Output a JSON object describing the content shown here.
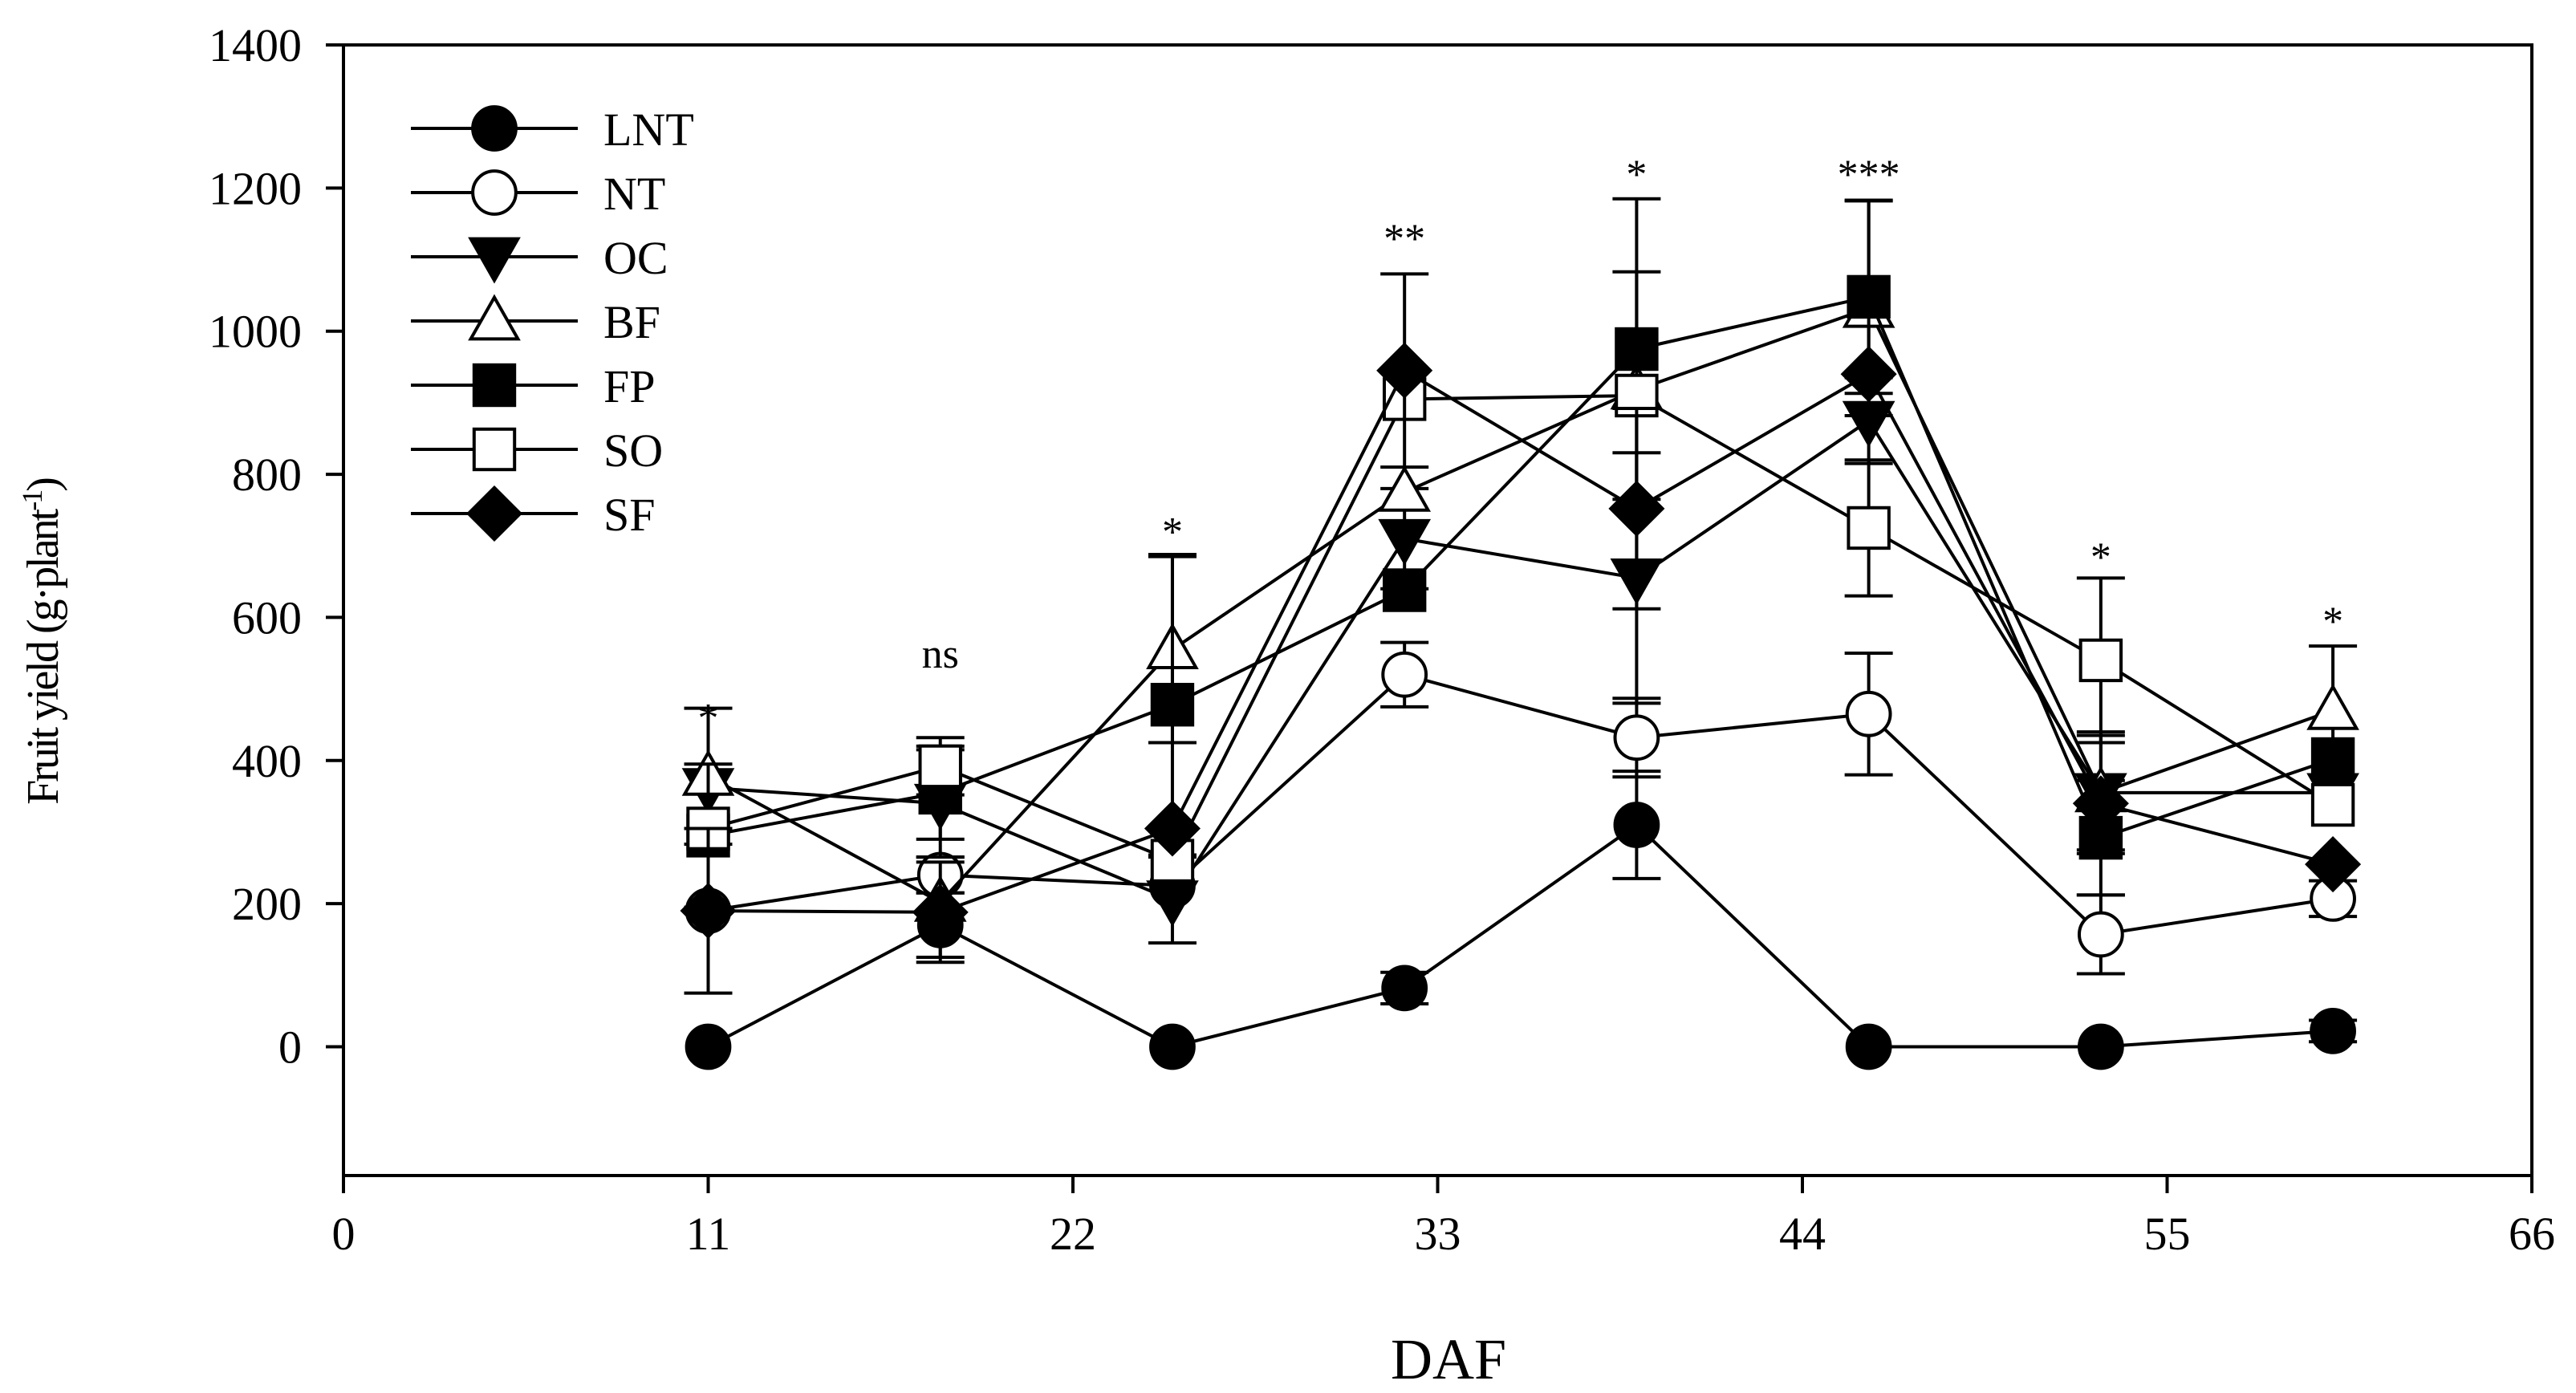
{
  "chart_data": {
    "type": "line",
    "xlabel": "DAF",
    "ylabel": "Fruit yield (g·plant",
    "ylabel_sup": "-1",
    "ylabel_tail": ")",
    "xlim": [
      0,
      66
    ],
    "ylim": [
      -180,
      1400
    ],
    "x_ticks": [
      0,
      11,
      22,
      33,
      44,
      55,
      66
    ],
    "y_ticks": [
      0,
      200,
      400,
      600,
      800,
      1000,
      1200,
      1400
    ],
    "x_tick_labels": [
      "0",
      "11",
      "22",
      "33",
      "44",
      "55",
      "66"
    ],
    "y_tick_labels": [
      "0",
      "200",
      "400",
      "600",
      "800",
      "1000",
      "1200",
      "1400"
    ],
    "grid": false,
    "legend_position": "top-left",
    "x": [
      11,
      18,
      25,
      32,
      39,
      46,
      53,
      60
    ],
    "series": [
      {
        "name": "LNT",
        "marker": "circle-filled",
        "values": [
          0,
          170,
          0,
          82,
          310,
          0,
          0,
          22
        ],
        "errors": [
          0,
          45,
          0,
          22,
          75,
          0,
          0,
          15
        ]
      },
      {
        "name": "NT",
        "marker": "circle-open",
        "values": [
          190,
          240,
          225,
          520,
          432,
          465,
          157,
          207
        ],
        "errors": [
          0,
          25,
          0,
          45,
          55,
          85,
          55,
          25
        ]
      },
      {
        "name": "OC",
        "marker": "triangle-down-filled",
        "values": [
          362,
          340,
          205,
          710,
          655,
          875,
          355,
          355
        ],
        "errors": [
          0,
          75,
          60,
          70,
          175,
          60,
          80,
          0
        ]
      },
      {
        "name": "BF",
        "marker": "triangle-up-open",
        "values": [
          378,
          202,
          555,
          775,
          918,
          1032,
          355,
          470
        ],
        "errors": [
          95,
          0,
          130,
          0,
          165,
          150,
          85,
          90
        ]
      },
      {
        "name": "FP",
        "marker": "square-filled",
        "values": [
          295,
          355,
          478,
          638,
          975,
          1048,
          292,
          402
        ],
        "errors": [
          100,
          65,
          210,
          0,
          210,
          135,
          80,
          0
        ]
      },
      {
        "name": "SO",
        "marker": "square-open",
        "values": [
          305,
          392,
          260,
          905,
          910,
          725,
          540,
          338
        ],
        "errors": [
          0,
          40,
          0,
          0,
          0,
          95,
          115,
          0
        ]
      },
      {
        "name": "SF",
        "marker": "diamond-filled",
        "values": [
          190,
          188,
          305,
          945,
          752,
          940,
          340,
          255
        ],
        "errors": [
          115,
          70,
          0,
          135,
          140,
          0,
          0,
          0
        ]
      }
    ],
    "annotations": [
      {
        "x": 11,
        "y": 440,
        "text": "*"
      },
      {
        "x": 18,
        "y": 530,
        "text": "ns"
      },
      {
        "x": 25,
        "y": 700,
        "text": "*"
      },
      {
        "x": 32,
        "y": 1110,
        "text": "**"
      },
      {
        "x": 39,
        "y": 1200,
        "text": "*"
      },
      {
        "x": 46,
        "y": 1200,
        "text": "***"
      },
      {
        "x": 53,
        "y": 665,
        "text": "*"
      },
      {
        "x": 60,
        "y": 575,
        "text": "*"
      }
    ]
  }
}
